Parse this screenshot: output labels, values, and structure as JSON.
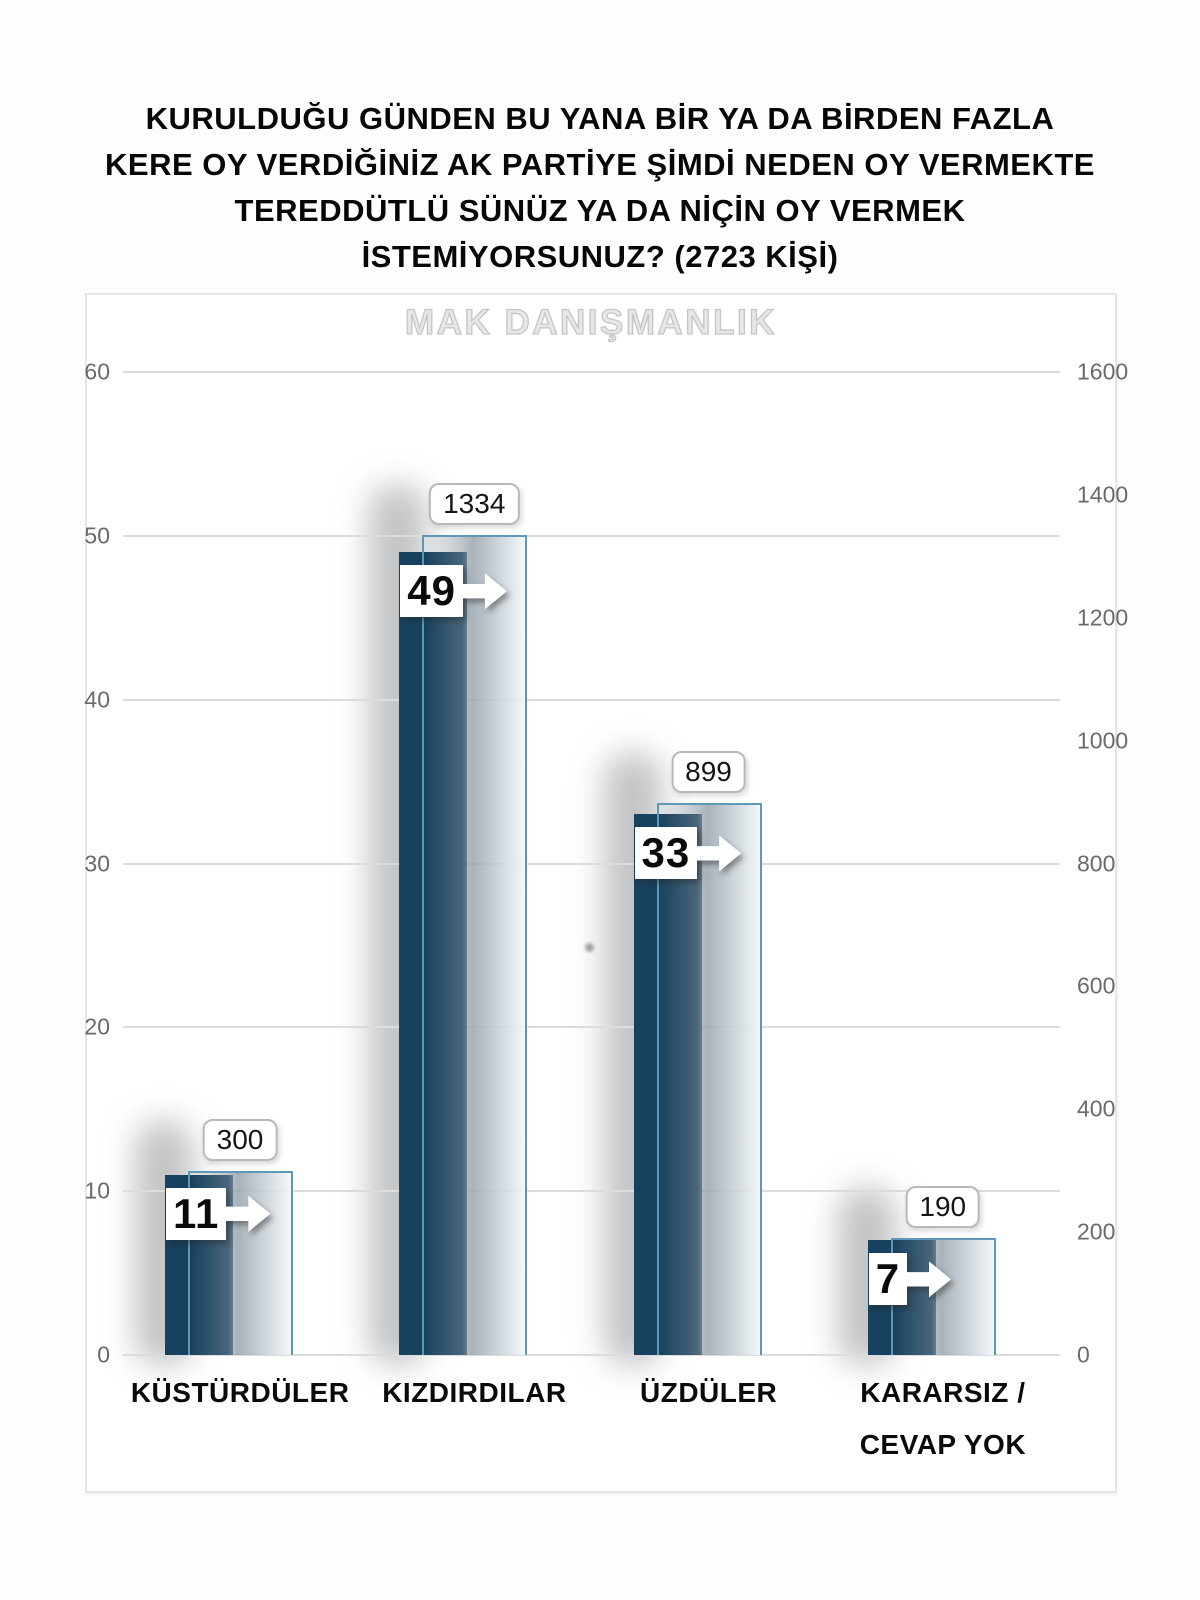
{
  "page_background": "#fdfdfd",
  "title": {
    "full": "KURULDUĞU GÜNDEN BU YANA BİR YA DA BİRDEN FAZLA KERE OY VERDİĞİNİZ AK PARTİYE ŞİMDİ NEDEN OY VERMEKTE TEREDDÜTLÜ SÜNÜZ YA DA NİÇİN OY VERMEK İSTEMİYORSUNUZ? (2723 KİŞİ)",
    "lines": [
      "KURULDUĞU GÜNDEN BU YANA BİR YA DA BİRDEN FAZLA",
      "KERE OY VERDİĞİNİZ AK PARTİYE ŞİMDİ NEDEN OY VERMEKTE",
      "TEREDDÜTLÜ SÜNÜZ YA DA NİÇİN OY VERMEK",
      "İSTEMİYORSUNUZ? (2723 KİŞİ)"
    ]
  },
  "watermark": "MAK DANIŞMANLIK",
  "chart_data": {
    "type": "bar",
    "title": "KURULDUĞU GÜNDEN BU YANA BİR YA DA BİRDEN FAZLA KERE OY VERDİĞİNİZ AK PARTİYE ŞİMDİ NEDEN OY VERMEKTE TEREDDÜTLÜ SÜNÜZ YA DA NİÇİN OY VERMEK İSTEMİYORSUNUZ? (2723 KİŞİ)",
    "watermark": "MAK DANIŞMANLIK",
    "respondents": "2723 KİŞİ",
    "categories": [
      "KÜSTÜRDÜLER",
      "KIZDIRDILAR",
      "ÜZDÜLER",
      "KARARSIZ /\nCEVAP YOK"
    ],
    "series": [
      {
        "name": "percent",
        "axis": "left",
        "values": [
          11,
          49,
          33,
          7
        ],
        "labels": [
          "11",
          "49",
          "33",
          "7"
        ]
      },
      {
        "name": "count",
        "axis": "right",
        "values": [
          300,
          1334,
          899,
          190
        ],
        "labels": [
          "300",
          "1334",
          "899",
          "190"
        ]
      }
    ],
    "left_axis": {
      "min": 0,
      "max": 60,
      "ticks": [
        0,
        10,
        20,
        30,
        40,
        50,
        60
      ]
    },
    "right_axis": {
      "min": 0,
      "max": 1600,
      "ticks": [
        0,
        200,
        400,
        600,
        800,
        1000,
        1200,
        1400,
        1600
      ]
    },
    "grid": true,
    "legend_position": "none",
    "colors": {
      "percent_bar": "#17415f",
      "count_bar_border": "#6097b6",
      "count_bar_fill_mid": "#9aa5ae",
      "count_bar_fill_end": "#f3f7fa",
      "gridline": "#dcdcdc",
      "axis_text": "#6a6a6a",
      "label_text": "#0a0a0a",
      "callout_bg": "#ffffff"
    }
  }
}
